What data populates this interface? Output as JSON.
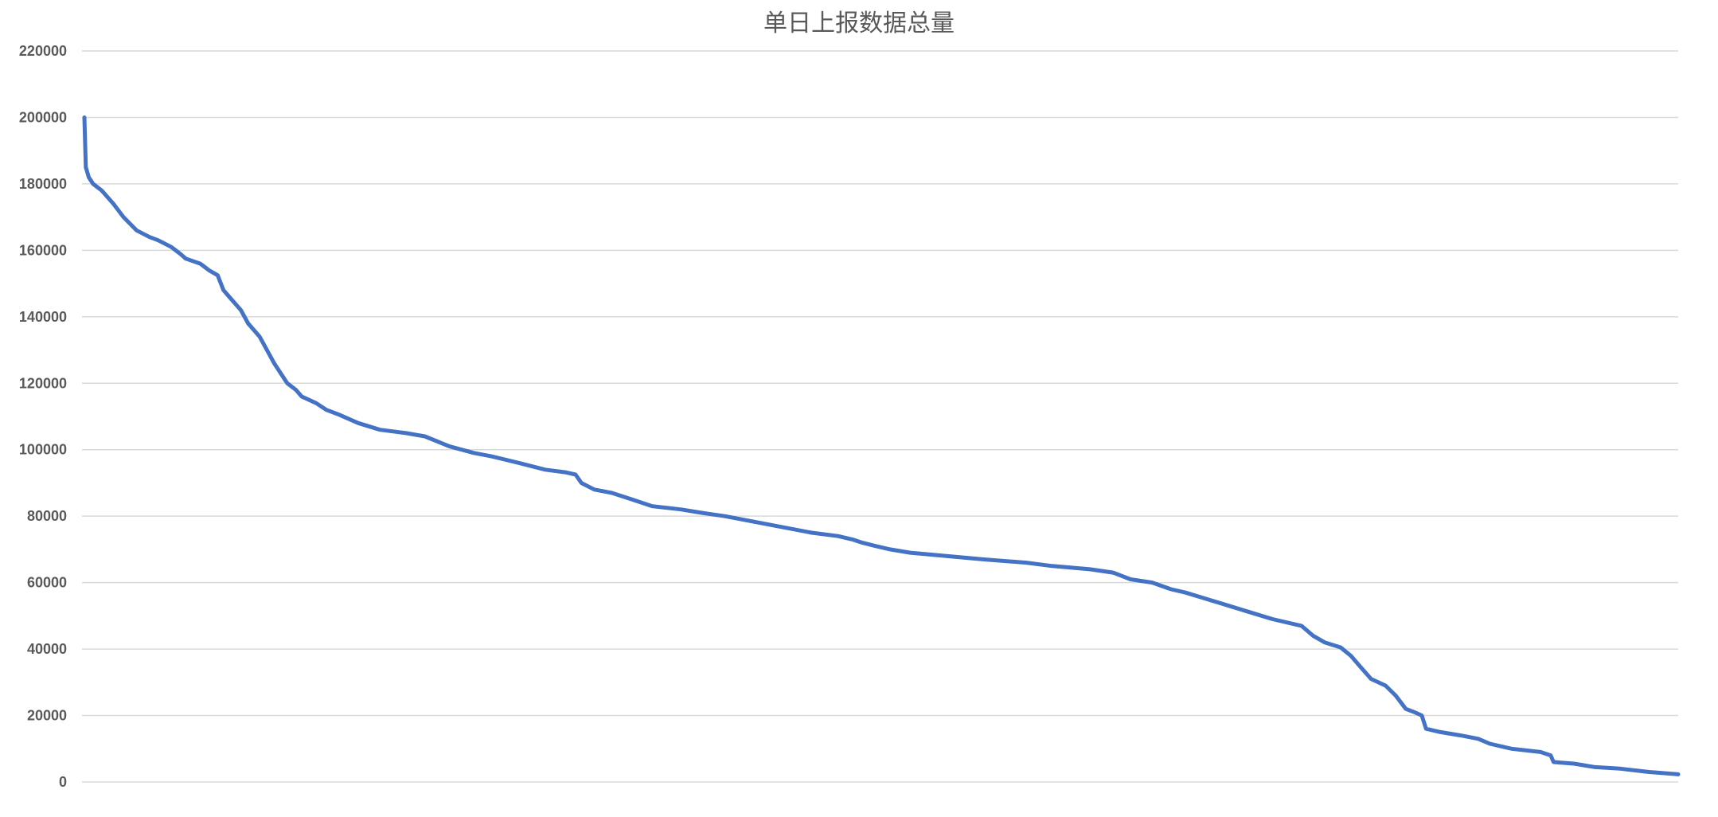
{
  "chart_data": {
    "type": "line",
    "title": "单日上报数据总量",
    "xlabel": "",
    "ylabel": "",
    "ylim": [
      0,
      220000
    ],
    "yticks": [
      "0",
      "20000",
      "40000",
      "60000",
      "80000",
      "100000",
      "120000",
      "140000",
      "160000",
      "180000",
      "200000",
      "220000"
    ],
    "grid": true,
    "legend": "none",
    "colors": {
      "series": "#4472C4",
      "grid": "#D9D9D9",
      "text": "#595959"
    },
    "x_count": 1000,
    "series": [
      {
        "points": [
          [
            0,
            200000
          ],
          [
            1,
            185000
          ],
          [
            3,
            182000
          ],
          [
            6,
            180000
          ],
          [
            12,
            178000
          ],
          [
            20,
            174000
          ],
          [
            27,
            170000
          ],
          [
            36,
            166000
          ],
          [
            45,
            164000
          ],
          [
            51,
            163000
          ],
          [
            60,
            161000
          ],
          [
            66,
            159000
          ],
          [
            70,
            157500
          ],
          [
            80,
            156000
          ],
          [
            86,
            154000
          ],
          [
            92,
            152500
          ],
          [
            96,
            148000
          ],
          [
            100,
            146000
          ],
          [
            108,
            142000
          ],
          [
            113,
            138000
          ],
          [
            121,
            134000
          ],
          [
            131,
            126000
          ],
          [
            140,
            120000
          ],
          [
            146,
            118000
          ],
          [
            150,
            116000
          ],
          [
            160,
            114000
          ],
          [
            167,
            112000
          ],
          [
            176,
            110500
          ],
          [
            189,
            108000
          ],
          [
            204,
            106000
          ],
          [
            222,
            105000
          ],
          [
            235,
            104000
          ],
          [
            252,
            101000
          ],
          [
            269,
            99000
          ],
          [
            281,
            98000
          ],
          [
            300,
            96000
          ],
          [
            318,
            94000
          ],
          [
            332,
            93200
          ],
          [
            339,
            92500
          ],
          [
            343,
            90000
          ],
          [
            352,
            88000
          ],
          [
            364,
            87000
          ],
          [
            378,
            85000
          ],
          [
            392,
            83000
          ],
          [
            412,
            82000
          ],
          [
            426,
            81000
          ],
          [
            442,
            80000
          ],
          [
            460,
            78500
          ],
          [
            478,
            77000
          ],
          [
            502,
            75000
          ],
          [
            520,
            74000
          ],
          [
            530,
            73000
          ],
          [
            537,
            72000
          ],
          [
            546,
            71000
          ],
          [
            556,
            70000
          ],
          [
            570,
            69000
          ],
          [
            595,
            68000
          ],
          [
            620,
            67000
          ],
          [
            650,
            66000
          ],
          [
            668,
            65000
          ],
          [
            694,
            64000
          ],
          [
            710,
            63000
          ],
          [
            722,
            61000
          ],
          [
            737,
            60000
          ],
          [
            750,
            58000
          ],
          [
            760,
            57000
          ],
          [
            775,
            55000
          ],
          [
            790,
            53000
          ],
          [
            805,
            51000
          ],
          [
            820,
            49000
          ],
          [
            840,
            47000
          ],
          [
            848,
            44000
          ],
          [
            856,
            42000
          ],
          [
            867,
            40500
          ],
          [
            874,
            38000
          ],
          [
            880,
            35000
          ],
          [
            888,
            31000
          ],
          [
            898,
            29000
          ],
          [
            905,
            26000
          ],
          [
            912,
            22000
          ],
          [
            918,
            21000
          ],
          [
            923,
            20000
          ],
          [
            926,
            16000
          ],
          [
            936,
            15000
          ],
          [
            950,
            14000
          ],
          [
            962,
            13000
          ],
          [
            970,
            11500
          ],
          [
            985,
            10000
          ],
          [
            1005,
            9000
          ],
          [
            1012,
            8000
          ],
          [
            1014,
            6000
          ],
          [
            1028,
            5500
          ],
          [
            1042,
            4500
          ],
          [
            1060,
            4000
          ],
          [
            1080,
            3000
          ],
          [
            1095,
            2500
          ],
          [
            1100,
            2300
          ]
        ]
      }
    ]
  }
}
